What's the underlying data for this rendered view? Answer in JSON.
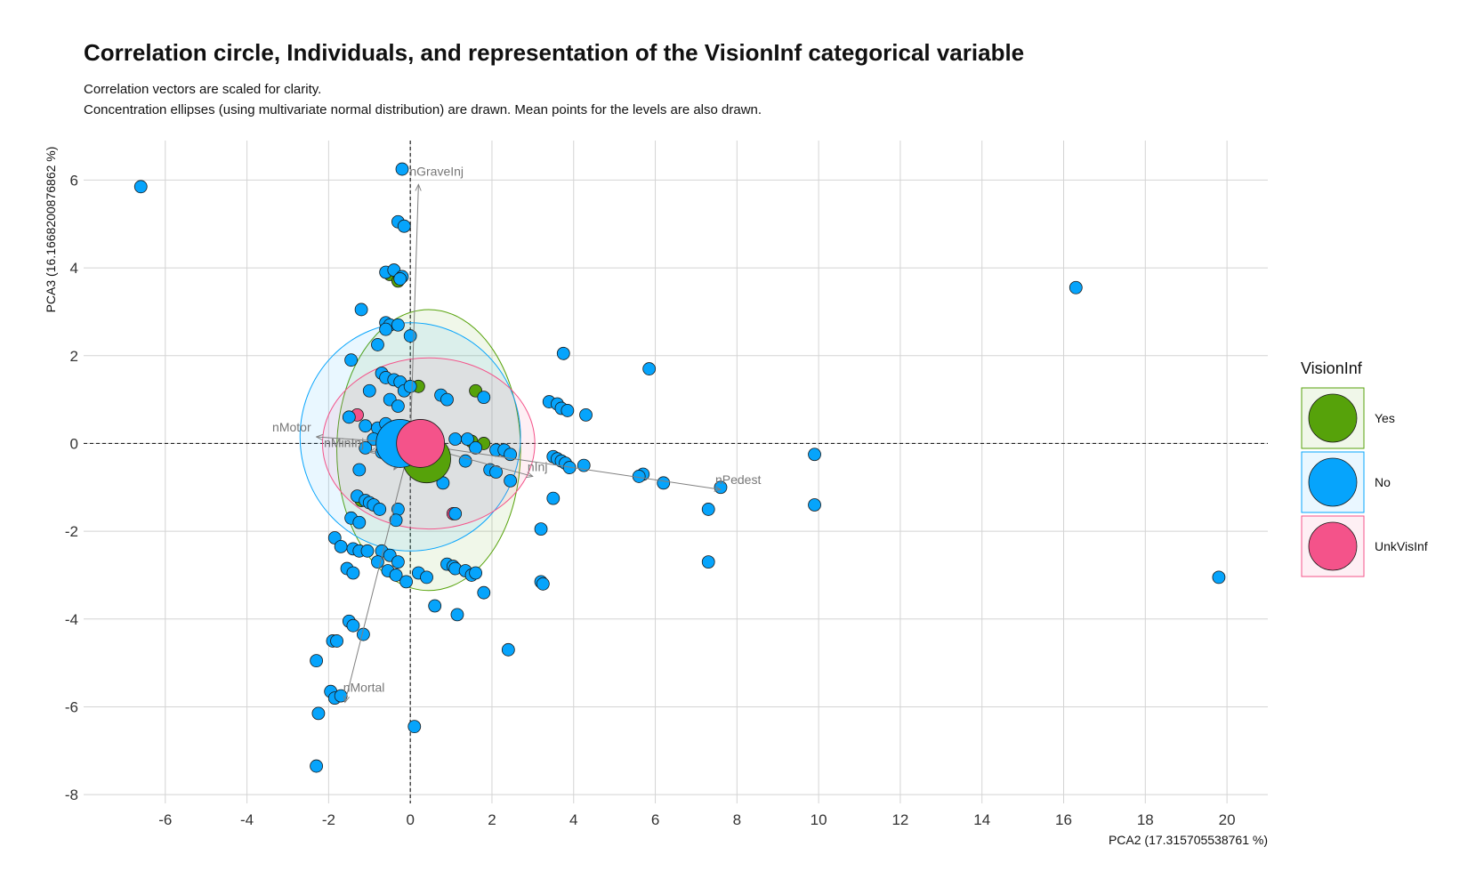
{
  "chart_data": {
    "type": "scatter",
    "title": "Correlation circle, Individuals, and representation of the VisionInf categorical variable",
    "subtitle_lines": [
      "Correlation vectors are scaled for clarity.",
      "Concentration ellipses (using multivariate normal distribution) are drawn. Mean points for the levels are also drawn."
    ],
    "xlabel": "PCA2 (17.315705538761 %)",
    "ylabel": "PCA3 (16.1668200876862 %)",
    "xlim": [
      -8,
      21
    ],
    "ylim": [
      -8.2,
      6.9
    ],
    "xticks": [
      -6,
      -4,
      -2,
      0,
      2,
      4,
      6,
      8,
      10,
      12,
      14,
      16,
      18,
      20
    ],
    "yticks": [
      -8,
      -6,
      -4,
      -2,
      0,
      2,
      4,
      6
    ],
    "grid": true,
    "legend": {
      "title": "VisionInf",
      "position": "right",
      "entries": [
        {
          "label": "Yes",
          "color": "#56a20a"
        },
        {
          "label": "No",
          "color": "#06a4fc"
        },
        {
          "label": "UnkVisInf",
          "color": "#f4538a"
        }
      ]
    },
    "series": [
      {
        "name": "Yes",
        "color": "#56a20a",
        "points": [
          [
            -0.5,
            3.85
          ],
          [
            -0.3,
            3.7
          ],
          [
            0.2,
            1.3
          ],
          [
            1.6,
            1.2
          ],
          [
            1.5,
            0.05
          ],
          [
            1.8,
            0.0
          ],
          [
            -1.2,
            -1.3
          ],
          [
            0.1,
            0.1
          ]
        ]
      },
      {
        "name": "UnkVisInf",
        "color": "#f4538a",
        "points": [
          [
            -1.3,
            0.65
          ],
          [
            1.05,
            -1.6
          ]
        ]
      },
      {
        "name": "No",
        "color": "#06a4fc",
        "points": [
          [
            -6.6,
            5.85
          ],
          [
            16.3,
            3.55
          ],
          [
            19.8,
            -3.05
          ],
          [
            9.9,
            -0.25
          ],
          [
            9.9,
            -1.4
          ],
          [
            7.6,
            -1.0
          ],
          [
            7.3,
            -1.5
          ],
          [
            7.3,
            -2.7
          ],
          [
            6.2,
            -0.9
          ],
          [
            5.85,
            1.7
          ],
          [
            5.7,
            -0.7
          ],
          [
            5.6,
            -0.75
          ],
          [
            -0.2,
            6.25
          ],
          [
            -0.3,
            5.05
          ],
          [
            -0.15,
            4.95
          ],
          [
            -0.6,
            3.9
          ],
          [
            -0.4,
            3.95
          ],
          [
            -0.2,
            3.8
          ],
          [
            -0.25,
            3.75
          ],
          [
            -1.2,
            3.05
          ],
          [
            -0.6,
            2.75
          ],
          [
            -0.5,
            2.7
          ],
          [
            -0.3,
            2.7
          ],
          [
            -0.6,
            2.6
          ],
          [
            0.0,
            2.45
          ],
          [
            -0.8,
            2.25
          ],
          [
            -1.45,
            1.9
          ],
          [
            -1.0,
            1.2
          ],
          [
            -0.7,
            1.6
          ],
          [
            -0.6,
            1.5
          ],
          [
            -0.4,
            1.45
          ],
          [
            -0.25,
            1.4
          ],
          [
            -0.15,
            1.2
          ],
          [
            0.0,
            1.3
          ],
          [
            -0.5,
            1.0
          ],
          [
            -0.3,
            0.85
          ],
          [
            0.75,
            1.1
          ],
          [
            0.9,
            1.0
          ],
          [
            1.8,
            1.05
          ],
          [
            -1.5,
            0.6
          ],
          [
            -1.1,
            0.4
          ],
          [
            -0.8,
            0.35
          ],
          [
            -0.6,
            0.45
          ],
          [
            -0.4,
            0.2
          ],
          [
            -0.9,
            0.1
          ],
          [
            -1.1,
            -0.1
          ],
          [
            -0.7,
            -0.2
          ],
          [
            -0.3,
            -0.05
          ],
          [
            1.1,
            0.1
          ],
          [
            1.4,
            0.1
          ],
          [
            1.6,
            -0.1
          ],
          [
            2.1,
            -0.15
          ],
          [
            2.3,
            -0.15
          ],
          [
            2.45,
            -0.25
          ],
          [
            1.35,
            -0.4
          ],
          [
            1.95,
            -0.6
          ],
          [
            2.1,
            -0.65
          ],
          [
            2.45,
            -0.85
          ],
          [
            0.8,
            -0.9
          ],
          [
            -1.25,
            -0.6
          ],
          [
            3.4,
            0.95
          ],
          [
            3.6,
            0.9
          ],
          [
            3.7,
            0.8
          ],
          [
            3.85,
            0.75
          ],
          [
            4.3,
            0.65
          ],
          [
            3.75,
            2.05
          ],
          [
            3.5,
            -0.3
          ],
          [
            3.6,
            -0.35
          ],
          [
            3.7,
            -0.4
          ],
          [
            3.8,
            -0.45
          ],
          [
            3.9,
            -0.55
          ],
          [
            4.25,
            -0.5
          ],
          [
            3.5,
            -1.25
          ],
          [
            3.2,
            -1.95
          ],
          [
            3.2,
            -3.15
          ],
          [
            3.25,
            -3.2
          ],
          [
            -1.3,
            -1.2
          ],
          [
            -1.1,
            -1.3
          ],
          [
            -1.0,
            -1.35
          ],
          [
            -0.9,
            -1.4
          ],
          [
            -0.75,
            -1.5
          ],
          [
            -0.3,
            -1.5
          ],
          [
            -0.35,
            -1.75
          ],
          [
            -1.45,
            -1.7
          ],
          [
            -1.25,
            -1.8
          ],
          [
            1.1,
            -1.6
          ],
          [
            -1.85,
            -2.15
          ],
          [
            -1.7,
            -2.35
          ],
          [
            -1.4,
            -2.4
          ],
          [
            -1.25,
            -2.45
          ],
          [
            -1.05,
            -2.45
          ],
          [
            -0.7,
            -2.45
          ],
          [
            -0.5,
            -2.55
          ],
          [
            -0.8,
            -2.7
          ],
          [
            -0.3,
            -2.7
          ],
          [
            -1.55,
            -2.85
          ],
          [
            -1.4,
            -2.95
          ],
          [
            -0.55,
            -2.9
          ],
          [
            -0.35,
            -3.0
          ],
          [
            -0.1,
            -3.15
          ],
          [
            0.2,
            -2.95
          ],
          [
            0.4,
            -3.05
          ],
          [
            0.9,
            -2.75
          ],
          [
            1.05,
            -2.8
          ],
          [
            1.1,
            -2.85
          ],
          [
            1.35,
            -2.9
          ],
          [
            1.5,
            -3.0
          ],
          [
            1.6,
            -2.95
          ],
          [
            1.8,
            -3.4
          ],
          [
            0.6,
            -3.7
          ],
          [
            1.15,
            -3.9
          ],
          [
            2.4,
            -4.7
          ],
          [
            -1.5,
            -4.05
          ],
          [
            -1.4,
            -4.15
          ],
          [
            -1.15,
            -4.35
          ],
          [
            -1.9,
            -4.5
          ],
          [
            -1.8,
            -4.5
          ],
          [
            -2.3,
            -4.95
          ],
          [
            -1.95,
            -5.65
          ],
          [
            -1.85,
            -5.8
          ],
          [
            -1.7,
            -5.75
          ],
          [
            -2.25,
            -6.15
          ],
          [
            0.1,
            -6.45
          ],
          [
            -2.3,
            -7.35
          ]
        ]
      }
    ],
    "mean_points": [
      {
        "level": "Yes",
        "x": 0.4,
        "y": -0.35,
        "color": "#56a20a"
      },
      {
        "level": "No",
        "x": -0.25,
        "y": 0.0,
        "color": "#06a4fc"
      },
      {
        "level": "UnkVisInf",
        "x": 0.25,
        "y": 0.0,
        "color": "#f4538a"
      }
    ],
    "ellipses": [
      {
        "level": "Yes",
        "color": "#56a20a",
        "cx": 0.45,
        "cy": -0.15,
        "rx": 2.25,
        "ry": 3.2
      },
      {
        "level": "No",
        "color": "#06a4fc",
        "cx": 0.0,
        "cy": 0.15,
        "rx": 2.7,
        "ry": 2.6
      },
      {
        "level": "UnkVisInf",
        "color": "#f4538a",
        "cx": 0.45,
        "cy": 0.0,
        "rx": 2.6,
        "ry": 1.95
      }
    ],
    "vectors": [
      {
        "name": "nGraveInj",
        "x": 0.2,
        "y": 5.9
      },
      {
        "name": "nMotor",
        "x": -2.3,
        "y": 0.15
      },
      {
        "name": "nMinInj",
        "x": -1.0,
        "y": -0.2
      },
      {
        "name": "nInj",
        "x": -0.4,
        "y": -0.6
      },
      {
        "name": "nInj",
        "x": 3.0,
        "y": -0.75
      },
      {
        "name": "nPedest",
        "x": 7.6,
        "y": -1.05
      },
      {
        "name": "nMortal",
        "x": -1.6,
        "y": -5.9
      }
    ]
  }
}
